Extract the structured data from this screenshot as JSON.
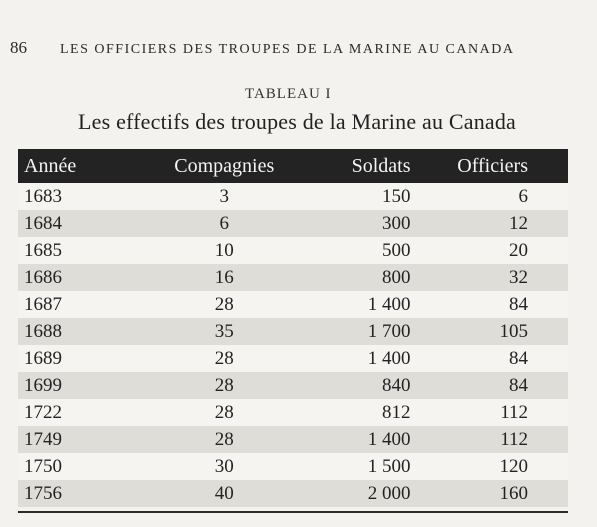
{
  "header": {
    "page_number": "86",
    "running_title": "LES OFFICIERS DES TROUPES DE LA MARINE AU CANADA"
  },
  "table": {
    "label": "TABLEAU I",
    "title": "Les effectifs des troupes de la Marine au Canada",
    "columns": [
      "Année",
      "Compagnies",
      "Soldats",
      "Officiers"
    ],
    "rows": [
      [
        "1683",
        "3",
        "150",
        "6"
      ],
      [
        "1684",
        "6",
        "300",
        "12"
      ],
      [
        "1685",
        "10",
        "500",
        "20"
      ],
      [
        "1686",
        "16",
        "800",
        "32"
      ],
      [
        "1687",
        "28",
        "1 400",
        "84"
      ],
      [
        "1688",
        "35",
        "1 700",
        "105"
      ],
      [
        "1689",
        "28",
        "1 400",
        "84"
      ],
      [
        "1699",
        "28",
        "840",
        "84"
      ],
      [
        "1722",
        "28",
        "812",
        "112"
      ],
      [
        "1749",
        "28",
        "1 400",
        "112"
      ],
      [
        "1750",
        "30",
        "1 500",
        "120"
      ],
      [
        "1756",
        "40",
        "2 000",
        "160"
      ]
    ]
  }
}
